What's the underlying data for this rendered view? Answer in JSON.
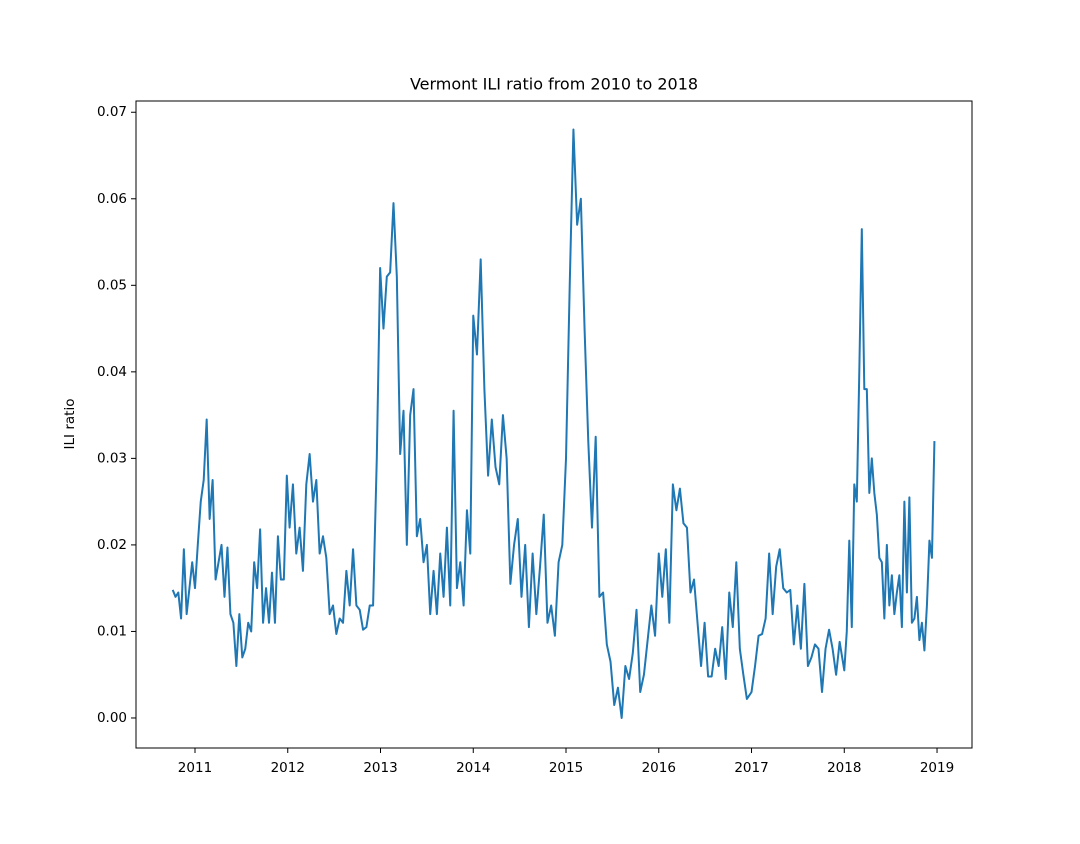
{
  "chart_data": {
    "type": "line",
    "title": "Vermont ILI ratio from 2010 to 2018",
    "ylabel": "ILI ratio",
    "color": "#1f77b4",
    "x": [
      2010.76,
      2010.79,
      2010.82,
      2010.85,
      2010.88,
      2010.91,
      2010.94,
      2010.97,
      2011.0,
      2011.03,
      2011.062,
      2011.094,
      2011.126,
      2011.158,
      2011.19,
      2011.222,
      2011.254,
      2011.286,
      2011.318,
      2011.35,
      2011.382,
      2011.414,
      2011.446,
      2011.478,
      2011.51,
      2011.542,
      2011.574,
      2011.606,
      2011.638,
      2011.67,
      2011.702,
      2011.734,
      2011.766,
      2011.798,
      2011.83,
      2011.862,
      2011.894,
      2011.926,
      2011.958,
      2011.99,
      2012.02,
      2012.056,
      2012.092,
      2012.128,
      2012.164,
      2012.2,
      2012.236,
      2012.272,
      2012.308,
      2012.344,
      2012.38,
      2012.416,
      2012.452,
      2012.488,
      2012.524,
      2012.56,
      2012.596,
      2012.632,
      2012.668,
      2012.704,
      2012.74,
      2012.776,
      2012.812,
      2012.848,
      2012.884,
      2012.92,
      2012.96,
      2012.996,
      2013.032,
      2013.068,
      2013.104,
      2013.14,
      2013.176,
      2013.212,
      2013.248,
      2013.284,
      2013.32,
      2013.356,
      2013.392,
      2013.428,
      2013.464,
      2013.5,
      2013.536,
      2013.572,
      2013.608,
      2013.644,
      2013.68,
      2013.716,
      2013.752,
      2013.788,
      2013.824,
      2013.86,
      2013.896,
      2013.932,
      2013.968,
      2014.0,
      2014.04,
      2014.08,
      2014.12,
      2014.16,
      2014.2,
      2014.24,
      2014.28,
      2014.32,
      2014.36,
      2014.4,
      2014.44,
      2014.48,
      2014.52,
      2014.56,
      2014.6,
      2014.64,
      2014.68,
      2014.72,
      2014.76,
      2014.8,
      2014.84,
      2014.88,
      2014.92,
      2014.96,
      2015.0,
      2015.04,
      2015.08,
      2015.12,
      2015.16,
      2015.2,
      2015.24,
      2015.28,
      2015.32,
      2015.36,
      2015.4,
      2015.44,
      2015.48,
      2015.52,
      2015.56,
      2015.6,
      2015.64,
      2015.68,
      2015.72,
      2015.76,
      2015.8,
      2015.84,
      2015.88,
      2015.92,
      2015.96,
      2016.0,
      2016.038,
      2016.076,
      2016.114,
      2016.152,
      2016.19,
      2016.228,
      2016.266,
      2016.304,
      2016.342,
      2016.38,
      2016.418,
      2016.456,
      2016.494,
      2016.532,
      2016.57,
      2016.608,
      2016.646,
      2016.684,
      2016.722,
      2016.76,
      2016.798,
      2016.836,
      2016.874,
      2016.912,
      2016.95,
      2017.0,
      2017.038,
      2017.076,
      2017.114,
      2017.152,
      2017.19,
      2017.228,
      2017.266,
      2017.304,
      2017.342,
      2017.38,
      2017.418,
      2017.456,
      2017.494,
      2017.532,
      2017.57,
      2017.608,
      2017.646,
      2017.684,
      2017.722,
      2017.76,
      2017.798,
      2017.836,
      2017.874,
      2017.912,
      2017.95,
      2018.0,
      2018.027,
      2018.054,
      2018.081,
      2018.108,
      2018.135,
      2018.162,
      2018.189,
      2018.216,
      2018.243,
      2018.27,
      2018.297,
      2018.324,
      2018.351,
      2018.378,
      2018.405,
      2018.432,
      2018.459,
      2018.486,
      2018.513,
      2018.54,
      2018.567,
      2018.594,
      2018.621,
      2018.648,
      2018.675,
      2018.702,
      2018.729,
      2018.756,
      2018.783,
      2018.81,
      2018.837,
      2018.864,
      2018.891,
      2018.918,
      2018.945,
      2018.972
    ],
    "values": [
      0.0148,
      0.014,
      0.0145,
      0.0115,
      0.0195,
      0.012,
      0.015,
      0.018,
      0.015,
      0.02,
      0.025,
      0.0275,
      0.0345,
      0.023,
      0.0275,
      0.016,
      0.018,
      0.02,
      0.014,
      0.0197,
      0.012,
      0.011,
      0.006,
      0.012,
      0.007,
      0.008,
      0.011,
      0.01,
      0.018,
      0.015,
      0.0218,
      0.011,
      0.015,
      0.011,
      0.0168,
      0.011,
      0.021,
      0.016,
      0.016,
      0.028,
      0.022,
      0.027,
      0.019,
      0.022,
      0.017,
      0.027,
      0.0305,
      0.025,
      0.0275,
      0.019,
      0.021,
      0.0185,
      0.012,
      0.013,
      0.0097,
      0.0115,
      0.011,
      0.017,
      0.013,
      0.0195,
      0.013,
      0.0125,
      0.0102,
      0.0105,
      0.013,
      0.013,
      0.03,
      0.052,
      0.045,
      0.051,
      0.0515,
      0.0595,
      0.051,
      0.0305,
      0.0355,
      0.02,
      0.035,
      0.038,
      0.021,
      0.023,
      0.018,
      0.02,
      0.012,
      0.017,
      0.012,
      0.019,
      0.014,
      0.022,
      0.013,
      0.0355,
      0.015,
      0.018,
      0.013,
      0.024,
      0.019,
      0.0465,
      0.042,
      0.053,
      0.038,
      0.028,
      0.0345,
      0.029,
      0.027,
      0.035,
      0.03,
      0.0155,
      0.02,
      0.023,
      0.014,
      0.02,
      0.0105,
      0.019,
      0.012,
      0.0175,
      0.0235,
      0.011,
      0.013,
      0.0095,
      0.018,
      0.02,
      0.03,
      0.05,
      0.068,
      0.057,
      0.06,
      0.045,
      0.032,
      0.022,
      0.0325,
      0.014,
      0.0145,
      0.0085,
      0.0065,
      0.0015,
      0.0035,
      0.0,
      0.006,
      0.0045,
      0.0075,
      0.0125,
      0.003,
      0.005,
      0.009,
      0.013,
      0.0095,
      0.019,
      0.014,
      0.0195,
      0.011,
      0.027,
      0.024,
      0.0265,
      0.0225,
      0.022,
      0.0145,
      0.016,
      0.011,
      0.006,
      0.011,
      0.0048,
      0.0048,
      0.008,
      0.006,
      0.0105,
      0.0045,
      0.0145,
      0.0105,
      0.018,
      0.008,
      0.005,
      0.0022,
      0.003,
      0.006,
      0.0095,
      0.0097,
      0.0115,
      0.019,
      0.012,
      0.0175,
      0.0195,
      0.015,
      0.0145,
      0.0148,
      0.0085,
      0.013,
      0.008,
      0.0155,
      0.006,
      0.007,
      0.0085,
      0.008,
      0.003,
      0.008,
      0.0102,
      0.008,
      0.005,
      0.0088,
      0.0055,
      0.01,
      0.0205,
      0.0105,
      0.027,
      0.025,
      0.04,
      0.0565,
      0.038,
      0.038,
      0.026,
      0.03,
      0.026,
      0.0235,
      0.0185,
      0.018,
      0.0115,
      0.02,
      0.013,
      0.0165,
      0.012,
      0.0145,
      0.0165,
      0.0105,
      0.025,
      0.0145,
      0.0255,
      0.011,
      0.0115,
      0.014,
      0.009,
      0.011,
      0.0078,
      0.013,
      0.0205,
      0.0185,
      0.032
    ],
    "xlim": [
      2010.364,
      2019.377
    ],
    "xticks": [
      2011,
      2012,
      2013,
      2014,
      2015,
      2016,
      2017,
      2018,
      2019
    ],
    "ylim": [
      -0.00347,
      0.0713
    ],
    "yticks": [
      {
        "value": 0,
        "label": "0.00"
      },
      0.01,
      0.02,
      0.03,
      0.04,
      0.05,
      0.06,
      0.07
    ]
  }
}
